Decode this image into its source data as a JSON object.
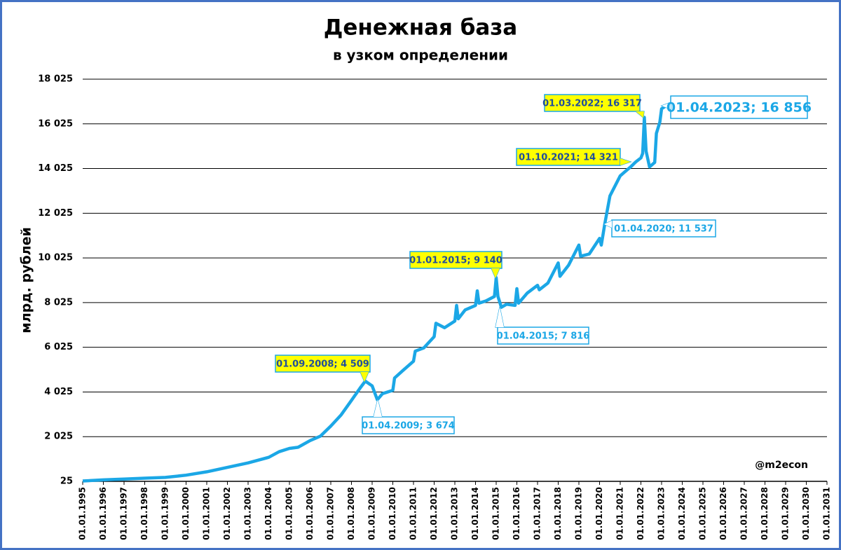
{
  "chart_data": {
    "type": "line",
    "title": "Денежная база",
    "subtitle": "в узком определении",
    "y_label": "млрд. рублей",
    "watermark": "@m2econ",
    "x": [
      "01.01.1995",
      "01.01.1996",
      "01.01.1997",
      "01.01.1998",
      "01.01.1999",
      "01.01.2000",
      "01.01.2001",
      "01.01.2002",
      "01.01.2003",
      "01.01.2004",
      "01.07.2004",
      "01.01.2005",
      "01.06.2005",
      "01.01.2006",
      "01.07.2006",
      "01.01.2007",
      "01.07.2007",
      "01.01.2008",
      "01.06.2008",
      "01.09.2008",
      "01.01.2009",
      "01.04.2009",
      "01.07.2009",
      "01.01.2010",
      "01.02.2010",
      "01.07.2010",
      "01.01.2011",
      "01.02.2011",
      "01.07.2011",
      "01.01.2012",
      "01.02.2012",
      "01.07.2012",
      "01.01.2013",
      "01.02.2013",
      "01.03.2013",
      "01.07.2013",
      "01.01.2014",
      "01.02.2014",
      "01.03.2014",
      "01.07.2014",
      "01.12.2014",
      "01.01.2015",
      "01.02.2015",
      "01.04.2015",
      "01.07.2015",
      "01.12.2015",
      "01.01.2016",
      "01.02.2016",
      "01.07.2016",
      "01.01.2017",
      "01.02.2017",
      "01.07.2017",
      "01.01.2018",
      "01.02.2018",
      "01.07.2018",
      "01.01.2019",
      "01.02.2019",
      "01.07.2019",
      "01.01.2020",
      "01.02.2020",
      "01.04.2020",
      "01.07.2020",
      "01.01.2021",
      "01.07.2021",
      "01.10.2021",
      "01.01.2022",
      "01.02.2022",
      "01.03.2022",
      "01.04.2022",
      "01.06.2022",
      "01.09.2022",
      "01.10.2022",
      "01.12.2022",
      "01.01.2023",
      "01.04.2023"
    ],
    "series": [
      {
        "name": "Денежная база",
        "color": "#1ba7e6",
        "values": [
          40,
          90,
          130,
          165,
          200,
          300,
          450,
          650,
          850,
          1100,
          1350,
          1500,
          1550,
          1850,
          2050,
          2500,
          3000,
          3650,
          4200,
          4509,
          4300,
          3674,
          3950,
          4100,
          4650,
          5000,
          5400,
          5850,
          6000,
          6500,
          7100,
          6900,
          7200,
          7900,
          7300,
          7700,
          7900,
          8550,
          8000,
          8100,
          8300,
          9140,
          8300,
          7816,
          7950,
          7900,
          8650,
          8000,
          8450,
          8800,
          8600,
          8900,
          9800,
          9200,
          9700,
          10600,
          10100,
          10200,
          10900,
          10600,
          11537,
          12800,
          13700,
          14100,
          14321,
          14500,
          14700,
          16317,
          14800,
          14100,
          14300,
          15600,
          16100,
          16700,
          16856
        ]
      }
    ],
    "xlim": [
      "01.01.1995",
      "01.01.2031"
    ],
    "xticks": [
      "01.01.1995",
      "01.01.1996",
      "01.01.1997",
      "01.01.1998",
      "01.01.1999",
      "01.01.2000",
      "01.01.2001",
      "01.01.2002",
      "01.01.2003",
      "01.01.2004",
      "01.01.2005",
      "01.01.2006",
      "01.01.2007",
      "01.01.2008",
      "01.01.2009",
      "01.01.2010",
      "01.01.2011",
      "01.01.2012",
      "01.01.2013",
      "01.01.2014",
      "01.01.2015",
      "01.01.2016",
      "01.01.2017",
      "01.01.2018",
      "01.01.2019",
      "01.01.2020",
      "01.01.2021",
      "01.01.2022",
      "01.01.2023",
      "01.01.2024",
      "01.01.2025",
      "01.01.2026",
      "01.01.2027",
      "01.01.2028",
      "01.01.2029",
      "01.01.2030",
      "01.01.2031"
    ],
    "ylim": [
      25,
      18025
    ],
    "yticks": [
      25,
      {
        "value": 2025,
        "label": "2 025"
      },
      {
        "value": 4025,
        "label": "4 025"
      },
      {
        "value": 6025,
        "label": "6 025"
      },
      {
        "value": 8025,
        "label": "8 025"
      },
      {
        "value": 10025,
        "label": "10 025"
      },
      {
        "value": 12025,
        "label": "12 025"
      },
      {
        "value": 14025,
        "label": "14 025"
      },
      {
        "value": 16025,
        "label": "16 025"
      },
      {
        "value": 18025,
        "label": "18 025"
      }
    ],
    "grid": true,
    "annotations": [
      {
        "label": "01.09.2008; 4 509",
        "color": "#ffff00"
      },
      {
        "label": "01.04.2009; 3 674",
        "color": "#ffffff"
      },
      {
        "label": "01.01.2015; 9 140",
        "color": "#ffff00"
      },
      {
        "label": "01.04.2015; 7 816",
        "color": "#ffffff"
      },
      {
        "label": "01.04.2020; 11 537",
        "color": "#ffffff"
      },
      {
        "label": "01.10.2021; 14 321",
        "color": "#ffff00"
      },
      {
        "label": "01.03.2022; 16 317",
        "color": "#ffff00"
      },
      {
        "label": "01.04.2023; 16 856",
        "color": "#ffffff"
      }
    ]
  }
}
